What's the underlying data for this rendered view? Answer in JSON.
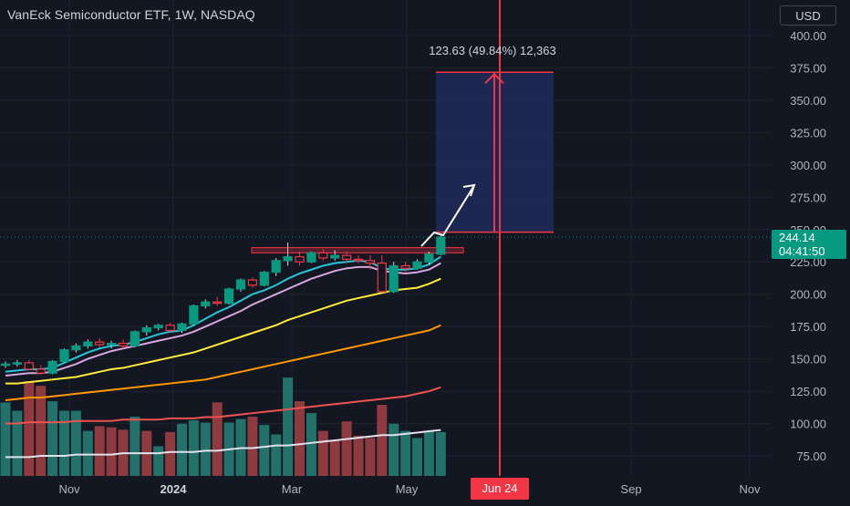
{
  "header": {
    "title": "VanEck Semiconductor ETF, 1W, NASDAQ",
    "currency": "USD"
  },
  "last_price": {
    "price": "244.14",
    "countdown": "04:41:50"
  },
  "projection": {
    "label": "123.63 (49.84%) 12,363",
    "date_tag": "Jun 24",
    "box_bottom": 248,
    "box_top": 371.6,
    "resistance_low": 232,
    "resistance_high": 236
  },
  "colors": {
    "background": "#131722",
    "up": "#089981",
    "down": "#f23645",
    "volume_up": "#22716a",
    "volume_down": "#8e3a3f",
    "projection_fill": "#1e2a5a",
    "projection_line": "#f23645",
    "resistance": "#f23645",
    "ma_cyan": "#26c6da",
    "ma_pink": "#d9a7e0",
    "ma_yellow": "#ffeb3b",
    "ma_orange": "#ff9800",
    "ma_red": "#ef5350",
    "ma_white": "#e0e3eb"
  },
  "chart_data": {
    "type": "candlestick",
    "title": "VanEck Semiconductor ETF, 1W, NASDAQ",
    "ylim": [
      60,
      410
    ],
    "y_ticks": [
      75,
      100,
      125,
      150,
      175,
      200,
      225,
      250,
      275,
      300,
      325,
      350,
      375,
      400
    ],
    "x_tick_labels": [
      "Nov",
      "2024",
      "Mar",
      "May",
      "Sep",
      "Nov"
    ],
    "candles": [
      {
        "o": 145,
        "h": 148,
        "l": 143,
        "c": 146
      },
      {
        "o": 146,
        "h": 149,
        "l": 144,
        "c": 147
      },
      {
        "o": 147,
        "h": 149,
        "l": 141,
        "c": 142
      },
      {
        "o": 142,
        "h": 145,
        "l": 138,
        "c": 139
      },
      {
        "o": 139,
        "h": 149,
        "l": 138,
        "c": 148
      },
      {
        "o": 148,
        "h": 158,
        "l": 147,
        "c": 157
      },
      {
        "o": 157,
        "h": 162,
        "l": 155,
        "c": 160
      },
      {
        "o": 160,
        "h": 165,
        "l": 158,
        "c": 163
      },
      {
        "o": 163,
        "h": 166,
        "l": 159,
        "c": 161
      },
      {
        "o": 161,
        "h": 164,
        "l": 158,
        "c": 162
      },
      {
        "o": 162,
        "h": 165,
        "l": 158,
        "c": 160
      },
      {
        "o": 160,
        "h": 172,
        "l": 159,
        "c": 171
      },
      {
        "o": 171,
        "h": 176,
        "l": 168,
        "c": 174
      },
      {
        "o": 174,
        "h": 177,
        "l": 172,
        "c": 176
      },
      {
        "o": 176,
        "h": 178,
        "l": 170,
        "c": 172
      },
      {
        "o": 172,
        "h": 178,
        "l": 170,
        "c": 177
      },
      {
        "o": 177,
        "h": 192,
        "l": 176,
        "c": 191
      },
      {
        "o": 191,
        "h": 196,
        "l": 189,
        "c": 194
      },
      {
        "o": 194,
        "h": 198,
        "l": 191,
        "c": 193
      },
      {
        "o": 193,
        "h": 205,
        "l": 192,
        "c": 204
      },
      {
        "o": 204,
        "h": 212,
        "l": 202,
        "c": 211
      },
      {
        "o": 211,
        "h": 213,
        "l": 205,
        "c": 207
      },
      {
        "o": 207,
        "h": 218,
        "l": 206,
        "c": 217
      },
      {
        "o": 217,
        "h": 228,
        "l": 214,
        "c": 226
      },
      {
        "o": 226,
        "h": 240,
        "l": 222,
        "c": 229
      },
      {
        "o": 229,
        "h": 233,
        "l": 222,
        "c": 225
      },
      {
        "o": 225,
        "h": 233,
        "l": 224,
        "c": 232
      },
      {
        "o": 232,
        "h": 235,
        "l": 226,
        "c": 228
      },
      {
        "o": 228,
        "h": 234,
        "l": 226,
        "c": 230
      },
      {
        "o": 230,
        "h": 233,
        "l": 224,
        "c": 227
      },
      {
        "o": 227,
        "h": 230,
        "l": 224,
        "c": 226
      },
      {
        "o": 226,
        "h": 230,
        "l": 219,
        "c": 224
      },
      {
        "o": 224,
        "h": 230,
        "l": 201,
        "c": 202
      },
      {
        "o": 202,
        "h": 225,
        "l": 201,
        "c": 222
      },
      {
        "o": 222,
        "h": 225,
        "l": 217,
        "c": 220
      },
      {
        "o": 220,
        "h": 227,
        "l": 219,
        "c": 225
      },
      {
        "o": 225,
        "h": 233,
        "l": 223,
        "c": 231
      },
      {
        "o": 231,
        "h": 246,
        "l": 230,
        "c": 244.14
      }
    ],
    "volume": [
      {
        "v": 0.62,
        "up": true
      },
      {
        "v": 0.55,
        "up": true
      },
      {
        "v": 0.8,
        "up": false
      },
      {
        "v": 0.76,
        "up": false
      },
      {
        "v": 0.63,
        "up": true
      },
      {
        "v": 0.55,
        "up": true
      },
      {
        "v": 0.55,
        "up": true
      },
      {
        "v": 0.38,
        "up": true
      },
      {
        "v": 0.42,
        "up": false
      },
      {
        "v": 0.41,
        "up": false
      },
      {
        "v": 0.39,
        "up": false
      },
      {
        "v": 0.5,
        "up": true
      },
      {
        "v": 0.38,
        "up": false
      },
      {
        "v": 0.25,
        "up": true
      },
      {
        "v": 0.37,
        "up": false
      },
      {
        "v": 0.44,
        "up": true
      },
      {
        "v": 0.47,
        "up": true
      },
      {
        "v": 0.45,
        "up": true
      },
      {
        "v": 0.62,
        "up": false
      },
      {
        "v": 0.45,
        "up": true
      },
      {
        "v": 0.48,
        "up": true
      },
      {
        "v": 0.5,
        "up": false
      },
      {
        "v": 0.43,
        "up": true
      },
      {
        "v": 0.35,
        "up": true
      },
      {
        "v": 0.83,
        "up": true
      },
      {
        "v": 0.63,
        "up": false
      },
      {
        "v": 0.53,
        "up": true
      },
      {
        "v": 0.38,
        "up": false
      },
      {
        "v": 0.3,
        "up": false
      },
      {
        "v": 0.46,
        "up": false
      },
      {
        "v": 0.34,
        "up": false
      },
      {
        "v": 0.32,
        "up": false
      },
      {
        "v": 0.6,
        "up": false
      },
      {
        "v": 0.44,
        "up": true
      },
      {
        "v": 0.38,
        "up": true
      },
      {
        "v": 0.32,
        "up": true
      },
      {
        "v": 0.38,
        "up": true
      },
      {
        "v": 0.37,
        "up": true
      }
    ],
    "moving_averages": [
      {
        "color": "ma_cyan",
        "values": [
          140,
          141,
          142,
          142,
          143,
          147,
          151,
          155,
          158,
          160,
          161,
          163,
          166,
          169,
          171,
          172,
          176,
          181,
          186,
          190,
          195,
          200,
          203,
          207,
          212,
          216,
          219,
          222,
          224,
          225,
          226,
          225,
          220,
          219,
          219,
          220,
          223,
          229
        ]
      },
      {
        "color": "ma_pink",
        "values": [
          137,
          138,
          139,
          139,
          140,
          143,
          146,
          150,
          153,
          156,
          158,
          160,
          162,
          164,
          166,
          168,
          171,
          175,
          179,
          183,
          187,
          192,
          196,
          200,
          204,
          208,
          212,
          215,
          218,
          220,
          221,
          221,
          218,
          217,
          216,
          217,
          219,
          224
        ]
      },
      {
        "color": "ma_yellow",
        "values": [
          131,
          131,
          132,
          133,
          134,
          135,
          136,
          138,
          140,
          142,
          143,
          145,
          147,
          149,
          151,
          153,
          155,
          158,
          161,
          164,
          167,
          170,
          173,
          176,
          180,
          183,
          186,
          189,
          192,
          195,
          197,
          199,
          201,
          203,
          204,
          205,
          208,
          212
        ]
      },
      {
        "color": "ma_orange",
        "values": [
          118,
          119,
          120,
          120,
          121,
          122,
          123,
          124,
          125,
          126,
          127,
          128,
          129,
          130,
          131,
          132,
          133,
          134,
          136,
          138,
          140,
          142,
          144,
          146,
          148,
          150,
          152,
          154,
          156,
          158,
          160,
          162,
          164,
          166,
          168,
          170,
          172,
          176
        ]
      },
      {
        "color": "ma_red",
        "values": [
          100,
          100,
          101,
          101,
          101,
          101,
          102,
          102,
          102,
          102,
          103,
          103,
          103,
          103,
          104,
          104,
          104,
          105,
          105,
          106,
          107,
          108,
          109,
          110,
          111,
          112,
          113,
          114,
          115,
          116,
          117,
          118,
          119,
          120,
          121,
          123,
          125,
          128
        ]
      },
      {
        "color": "ma_white",
        "values": [
          74,
          74,
          74,
          75,
          75,
          75,
          76,
          76,
          76,
          76,
          77,
          77,
          77,
          77,
          78,
          78,
          78,
          79,
          79,
          80,
          81,
          81,
          82,
          83,
          83,
          84,
          85,
          86,
          87,
          88,
          89,
          90,
          91,
          91,
          92,
          93,
          94,
          95
        ]
      }
    ]
  }
}
